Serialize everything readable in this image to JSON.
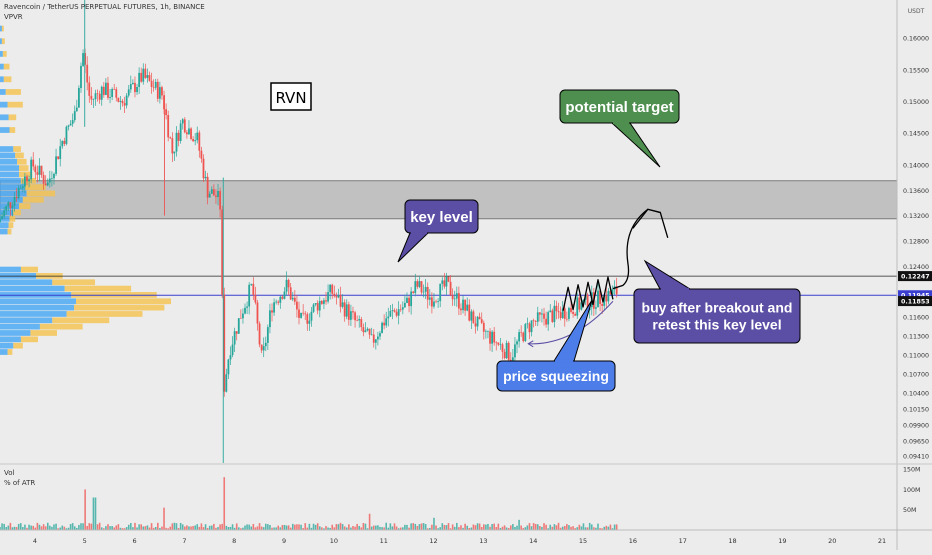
{
  "header": {
    "title": "Ravencoin / TetherUS PERPETUAL FUTURES, 1h, BINANCE",
    "indicator": "VPVR",
    "volume_label": "Vol",
    "atr_label": "% of ATR"
  },
  "colors": {
    "background": "#ececec",
    "up": "#26a69a",
    "down": "#ef5350",
    "wick": "#333333",
    "vp_up": "#42a5f5",
    "vp_down": "#f5c24c",
    "zone": "#9e9e9e",
    "callout_green": "#4e8e4f",
    "callout_purple": "#5b4ea5",
    "callout_blue": "#4d7de8"
  },
  "chart_data": {
    "type": "candlestick",
    "price_axis": {
      "unit": "USDT",
      "ylim": [
        0.093,
        0.166
      ],
      "ticks": [
        "0.16000",
        "0.15500",
        "0.15000",
        "0.14500",
        "0.14000",
        "0.13600",
        "0.13200",
        "0.12800",
        "0.12400",
        "0.11600",
        "0.11300",
        "0.11000",
        "0.10700",
        "0.10400",
        "0.10150",
        "0.09900",
        "0.09650",
        "0.09410"
      ],
      "tick_values": [
        0.16,
        0.155,
        0.15,
        0.145,
        0.14,
        0.136,
        0.132,
        0.128,
        0.124,
        0.116,
        0.113,
        0.11,
        0.107,
        0.104,
        0.1015,
        0.099,
        0.0965,
        0.0941
      ],
      "price_labels": [
        {
          "text": "0.12247",
          "value": 0.12247,
          "style": "dark"
        },
        {
          "text": "0.11945",
          "value": 0.11945,
          "style": "blue"
        },
        {
          "text": "0.11853",
          "value": 0.11853,
          "style": "dark"
        }
      ]
    },
    "volume_axis": {
      "ticks": [
        "150M",
        "100M",
        "50M"
      ],
      "tick_values": [
        150,
        100,
        50
      ]
    },
    "time_axis": {
      "xlim": [
        3.3,
        21.3
      ],
      "ticks": [
        "4",
        "5",
        "6",
        "7",
        "8",
        "9",
        "10",
        "11",
        "12",
        "13",
        "14",
        "15",
        "16",
        "17",
        "18",
        "19",
        "20",
        "21"
      ],
      "tick_values": [
        4,
        5,
        6,
        7,
        8,
        9,
        10,
        11,
        12,
        13,
        14,
        15,
        16,
        17,
        18,
        19,
        20,
        21
      ]
    },
    "zone": {
      "low": 0.1315,
      "high": 0.1375
    },
    "key_level": 0.11945,
    "resistance": 0.12247,
    "path_keypoints": [
      [
        3.3,
        0.131
      ],
      [
        3.7,
        0.136
      ],
      [
        4.0,
        0.14
      ],
      [
        4.3,
        0.137
      ],
      [
        4.6,
        0.144
      ],
      [
        4.85,
        0.148
      ],
      [
        5.0,
        0.158
      ],
      [
        5.15,
        0.15
      ],
      [
        5.4,
        0.152
      ],
      [
        5.8,
        0.15
      ],
      [
        6.2,
        0.154
      ],
      [
        6.6,
        0.151
      ],
      [
        6.8,
        0.142
      ],
      [
        7.0,
        0.147
      ],
      [
        7.3,
        0.144
      ],
      [
        7.5,
        0.136
      ],
      [
        7.7,
        0.135
      ],
      [
        7.78,
        0.133
      ],
      [
        7.82,
        0.104
      ],
      [
        7.95,
        0.111
      ],
      [
        8.2,
        0.117
      ],
      [
        8.4,
        0.121
      ],
      [
        8.6,
        0.109
      ],
      [
        8.8,
        0.118
      ],
      [
        9.1,
        0.121
      ],
      [
        9.4,
        0.115
      ],
      [
        9.7,
        0.118
      ],
      [
        10.0,
        0.12
      ],
      [
        10.3,
        0.117
      ],
      [
        10.6,
        0.114
      ],
      [
        10.8,
        0.112
      ],
      [
        11.1,
        0.116
      ],
      [
        11.5,
        0.118
      ],
      [
        11.7,
        0.121
      ],
      [
        12.0,
        0.119
      ],
      [
        12.3,
        0.121
      ],
      [
        12.6,
        0.118
      ],
      [
        12.8,
        0.116
      ],
      [
        13.0,
        0.114
      ],
      [
        13.3,
        0.112
      ],
      [
        13.6,
        0.11
      ],
      [
        13.8,
        0.113
      ],
      [
        14.0,
        0.115
      ],
      [
        14.3,
        0.116
      ],
      [
        14.7,
        0.117
      ],
      [
        15.0,
        0.118
      ],
      [
        15.4,
        0.119
      ],
      [
        15.7,
        0.12
      ]
    ],
    "volume_spikes": [
      [
        5.0,
        100
      ],
      [
        5.2,
        80
      ],
      [
        6.6,
        55
      ],
      [
        7.8,
        130
      ],
      [
        10.7,
        40
      ],
      [
        12.0,
        30
      ],
      [
        13.7,
        25
      ]
    ],
    "volume_profile_rows": [
      {
        "price": 0.1235,
        "up": 22,
        "down": 18
      },
      {
        "price": 0.1225,
        "up": 38,
        "down": 28
      },
      {
        "price": 0.1215,
        "up": 55,
        "down": 45
      },
      {
        "price": 0.1205,
        "up": 68,
        "down": 70
      },
      {
        "price": 0.1195,
        "up": 75,
        "down": 90
      },
      {
        "price": 0.1185,
        "up": 80,
        "down": 100
      },
      {
        "price": 0.1175,
        "up": 78,
        "down": 95
      },
      {
        "price": 0.1165,
        "up": 70,
        "down": 80
      },
      {
        "price": 0.1155,
        "up": 55,
        "down": 60
      },
      {
        "price": 0.1145,
        "up": 42,
        "down": 45
      },
      {
        "price": 0.1135,
        "up": 32,
        "down": 28
      },
      {
        "price": 0.1125,
        "up": 22,
        "down": 18
      },
      {
        "price": 0.1115,
        "up": 14,
        "down": 10
      },
      {
        "price": 0.1105,
        "up": 8,
        "down": 5
      },
      {
        "price": 0.1295,
        "up": 8,
        "down": 4
      },
      {
        "price": 0.1305,
        "up": 9,
        "down": 5
      },
      {
        "price": 0.1315,
        "up": 10,
        "down": 6
      },
      {
        "price": 0.1325,
        "up": 14,
        "down": 8
      },
      {
        "price": 0.1335,
        "up": 20,
        "down": 12
      },
      {
        "price": 0.1345,
        "up": 24,
        "down": 22
      },
      {
        "price": 0.1355,
        "up": 28,
        "down": 30
      },
      {
        "price": 0.1365,
        "up": 26,
        "down": 22
      },
      {
        "price": 0.1375,
        "up": 22,
        "down": 16
      },
      {
        "price": 0.1385,
        "up": 20,
        "down": 14
      },
      {
        "price": 0.1395,
        "up": 20,
        "down": 10
      },
      {
        "price": 0.1405,
        "up": 18,
        "down": 10
      },
      {
        "price": 0.1415,
        "up": 16,
        "down": 9
      },
      {
        "price": 0.1425,
        "up": 14,
        "down": 8
      },
      {
        "price": 0.1455,
        "up": 10,
        "down": 6
      },
      {
        "price": 0.1475,
        "up": 9,
        "down": 8
      },
      {
        "price": 0.1495,
        "up": 8,
        "down": 16
      },
      {
        "price": 0.1515,
        "up": 6,
        "down": 16
      },
      {
        "price": 0.1535,
        "up": 4,
        "down": 8
      },
      {
        "price": 0.1555,
        "up": 4,
        "down": 6
      },
      {
        "price": 0.1575,
        "up": 3,
        "down": 4
      },
      {
        "price": 0.1595,
        "up": 2,
        "down": 3
      },
      {
        "price": 0.1615,
        "up": 2,
        "down": 2
      }
    ],
    "annotations": {
      "ticker": "RVN",
      "potential_target": "potential target",
      "key_level": "key level",
      "buy_note": "buy after breakout and\nretest this key level",
      "price_squeezing": "price squeezing"
    }
  }
}
